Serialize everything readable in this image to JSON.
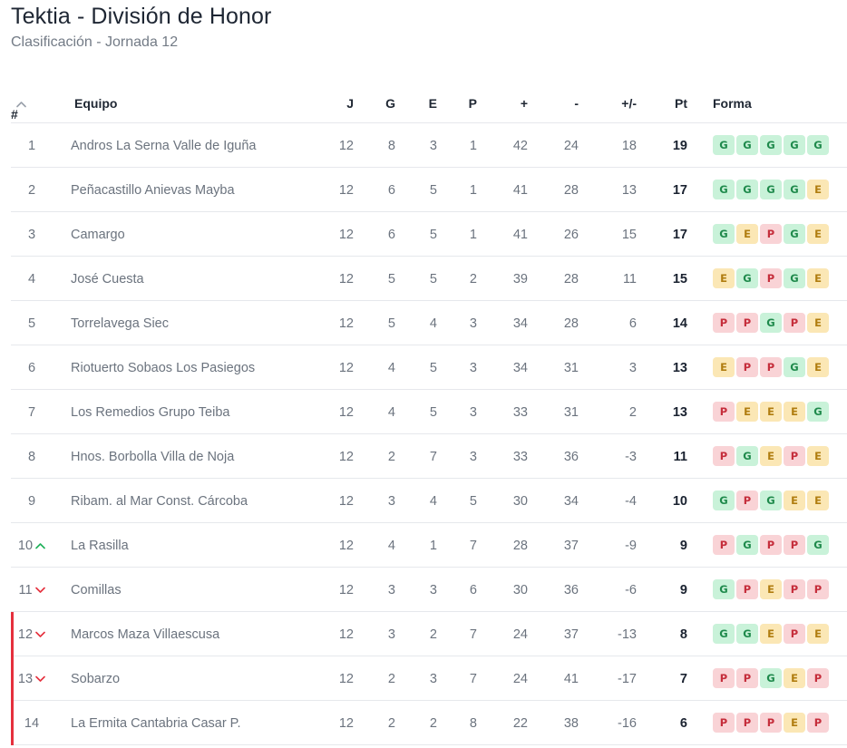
{
  "title": "Tektia - División de Honor",
  "subtitle": "Clasificación - Jornada 12",
  "headers": {
    "rank": "#",
    "team": "Equipo",
    "j": "J",
    "g": "G",
    "e": "E",
    "p": "P",
    "gf": "+",
    "ga": "-",
    "dif": "+/-",
    "pt": "Pt",
    "form": "Forma"
  },
  "colors": {
    "danger_bar": "#e5303d",
    "up": "#20b15a",
    "down": "#e5303d",
    "win_bg": "#c9f2d9",
    "draw_bg": "#fbe7b5",
    "loss_bg": "#f9d3d6"
  },
  "rows": [
    {
      "rank": "1",
      "trend": "",
      "team": "Andros La Serna Valle de Iguña",
      "j": "12",
      "g": "8",
      "e": "3",
      "p": "1",
      "gf": "42",
      "ga": "24",
      "dif": "18",
      "pt": "19",
      "form": [
        "G",
        "G",
        "G",
        "G",
        "G"
      ],
      "danger": false
    },
    {
      "rank": "2",
      "trend": "",
      "team": "Peñacastillo Anievas Mayba",
      "j": "12",
      "g": "6",
      "e": "5",
      "p": "1",
      "gf": "41",
      "ga": "28",
      "dif": "13",
      "pt": "17",
      "form": [
        "G",
        "G",
        "G",
        "G",
        "E"
      ],
      "danger": false
    },
    {
      "rank": "3",
      "trend": "",
      "team": "Camargo",
      "j": "12",
      "g": "6",
      "e": "5",
      "p": "1",
      "gf": "41",
      "ga": "26",
      "dif": "15",
      "pt": "17",
      "form": [
        "G",
        "E",
        "P",
        "G",
        "E"
      ],
      "danger": false
    },
    {
      "rank": "4",
      "trend": "",
      "team": "José Cuesta",
      "j": "12",
      "g": "5",
      "e": "5",
      "p": "2",
      "gf": "39",
      "ga": "28",
      "dif": "11",
      "pt": "15",
      "form": [
        "E",
        "G",
        "P",
        "G",
        "E"
      ],
      "danger": false
    },
    {
      "rank": "5",
      "trend": "",
      "team": "Torrelavega Siec",
      "j": "12",
      "g": "5",
      "e": "4",
      "p": "3",
      "gf": "34",
      "ga": "28",
      "dif": "6",
      "pt": "14",
      "form": [
        "P",
        "P",
        "G",
        "P",
        "E"
      ],
      "danger": false
    },
    {
      "rank": "6",
      "trend": "",
      "team": "Riotuerto Sobaos Los Pasiegos",
      "j": "12",
      "g": "4",
      "e": "5",
      "p": "3",
      "gf": "34",
      "ga": "31",
      "dif": "3",
      "pt": "13",
      "form": [
        "E",
        "P",
        "P",
        "G",
        "E"
      ],
      "danger": false
    },
    {
      "rank": "7",
      "trend": "",
      "team": "Los Remedios Grupo Teiba",
      "j": "12",
      "g": "4",
      "e": "5",
      "p": "3",
      "gf": "33",
      "ga": "31",
      "dif": "2",
      "pt": "13",
      "form": [
        "P",
        "E",
        "E",
        "E",
        "G"
      ],
      "danger": false
    },
    {
      "rank": "8",
      "trend": "",
      "team": "Hnos. Borbolla Villa de Noja",
      "j": "12",
      "g": "2",
      "e": "7",
      "p": "3",
      "gf": "33",
      "ga": "36",
      "dif": "-3",
      "pt": "11",
      "form": [
        "P",
        "G",
        "E",
        "P",
        "E"
      ],
      "danger": false
    },
    {
      "rank": "9",
      "trend": "",
      "team": "Ribam. al Mar Const. Cárcoba",
      "j": "12",
      "g": "3",
      "e": "4",
      "p": "5",
      "gf": "30",
      "ga": "34",
      "dif": "-4",
      "pt": "10",
      "form": [
        "G",
        "P",
        "G",
        "E",
        "E"
      ],
      "danger": false
    },
    {
      "rank": "10",
      "trend": "up",
      "team": "La Rasilla",
      "j": "12",
      "g": "4",
      "e": "1",
      "p": "7",
      "gf": "28",
      "ga": "37",
      "dif": "-9",
      "pt": "9",
      "form": [
        "P",
        "G",
        "P",
        "P",
        "G"
      ],
      "danger": false
    },
    {
      "rank": "11",
      "trend": "down",
      "team": "Comillas",
      "j": "12",
      "g": "3",
      "e": "3",
      "p": "6",
      "gf": "30",
      "ga": "36",
      "dif": "-6",
      "pt": "9",
      "form": [
        "G",
        "P",
        "E",
        "P",
        "P"
      ],
      "danger": false
    },
    {
      "rank": "12",
      "trend": "down",
      "team": "Marcos Maza Villaescusa",
      "j": "12",
      "g": "3",
      "e": "2",
      "p": "7",
      "gf": "24",
      "ga": "37",
      "dif": "-13",
      "pt": "8",
      "form": [
        "G",
        "G",
        "E",
        "P",
        "E"
      ],
      "danger": true
    },
    {
      "rank": "13",
      "trend": "down",
      "team": "Sobarzo",
      "j": "12",
      "g": "2",
      "e": "3",
      "p": "7",
      "gf": "24",
      "ga": "41",
      "dif": "-17",
      "pt": "7",
      "form": [
        "P",
        "P",
        "G",
        "E",
        "P"
      ],
      "danger": true
    },
    {
      "rank": "14",
      "trend": "",
      "team": "La Ermita Cantabria Casar P.",
      "j": "12",
      "g": "2",
      "e": "2",
      "p": "8",
      "gf": "22",
      "ga": "38",
      "dif": "-16",
      "pt": "6",
      "form": [
        "P",
        "P",
        "P",
        "E",
        "P"
      ],
      "danger": true
    }
  ]
}
